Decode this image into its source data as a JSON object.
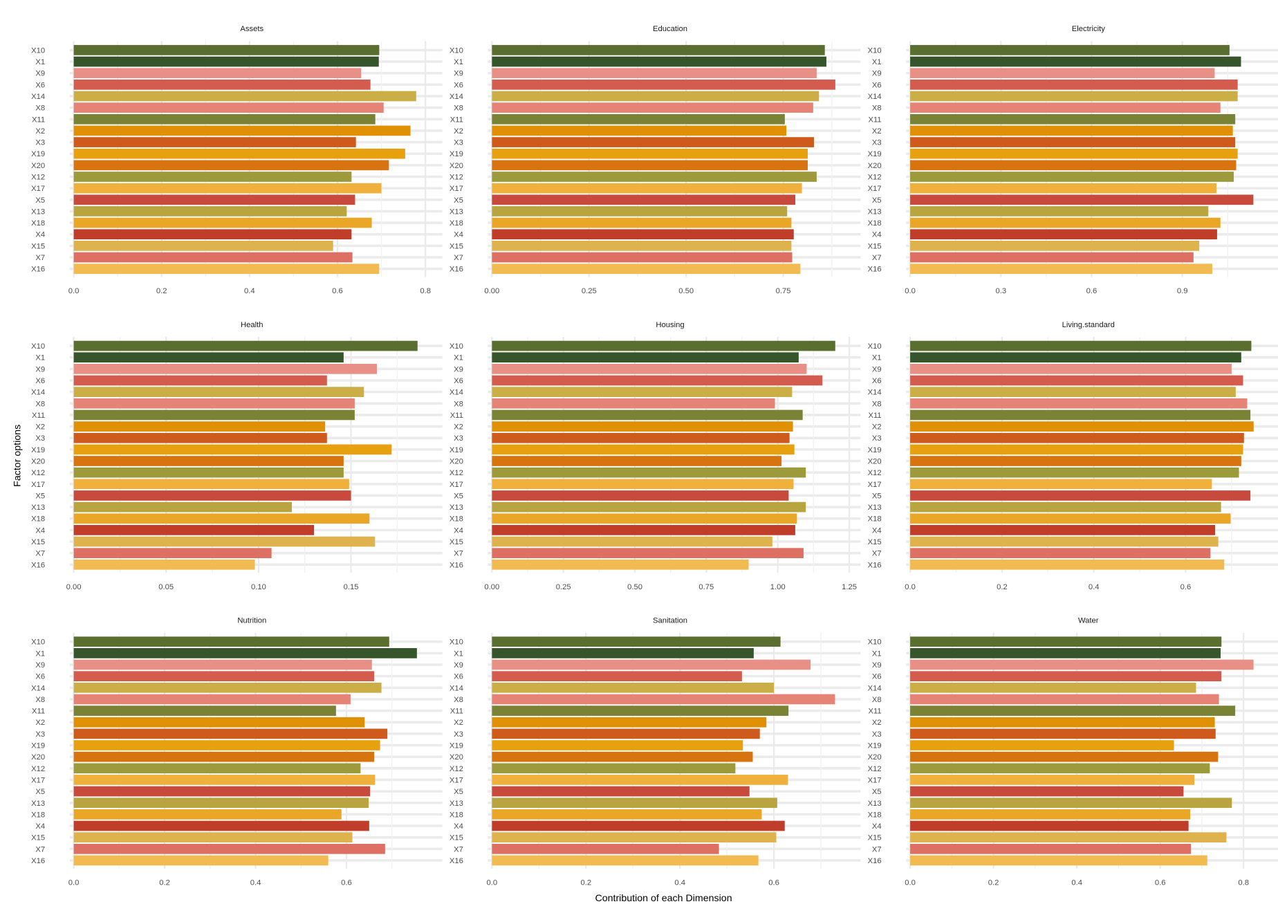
{
  "chart_data": {
    "type": "bar",
    "orientation": "horizontal",
    "layout": "faceted 3x3, free x scales",
    "xlabel": "Contribution of each Dimension",
    "ylabel": "Factor options",
    "grid": true,
    "categories": [
      "X10",
      "X1",
      "X9",
      "X6",
      "X14",
      "X8",
      "X11",
      "X2",
      "X3",
      "X19",
      "X20",
      "X12",
      "X17",
      "X5",
      "X13",
      "X18",
      "X4",
      "X15",
      "X7",
      "X16"
    ],
    "colors": {
      "X10": "#5a6e30",
      "X1": "#36552a",
      "X9": "#e89085",
      "X6": "#d35c4f",
      "X14": "#cbae46",
      "X8": "#e58376",
      "X11": "#7a8236",
      "X2": "#e09005",
      "X3": "#ce5a1c",
      "X19": "#e8a10e",
      "X20": "#d87410",
      "X12": "#9c9a3a",
      "X17": "#f0b03c",
      "X5": "#c74a3c",
      "X13": "#b8a540",
      "X18": "#eaa626",
      "X4": "#c03d2a",
      "X15": "#deb24c",
      "X7": "#dd7062",
      "X16": "#f2bb51"
    },
    "panels": [
      {
        "title": "Assets",
        "ticks": [
          0,
          0.2,
          0.4,
          0.6,
          0.8
        ],
        "tick_labels": [
          "0.0",
          "0.2",
          "0.4",
          "0.6",
          "0.8"
        ],
        "xlim": [
          0,
          0.82
        ],
        "values": [
          0.695,
          0.694,
          0.654,
          0.675,
          0.779,
          0.705,
          0.686,
          0.766,
          0.642,
          0.754,
          0.717,
          0.632,
          0.7,
          0.64,
          0.621,
          0.678,
          0.632,
          0.59,
          0.634,
          0.695
        ]
      },
      {
        "title": "Education",
        "ticks": [
          0,
          0.25,
          0.5,
          0.75
        ],
        "tick_labels": [
          "0.00",
          "0.25",
          "0.50",
          "0.75"
        ],
        "xlim": [
          0,
          0.928
        ],
        "values": [
          0.857,
          0.861,
          0.836,
          0.884,
          0.842,
          0.827,
          0.754,
          0.758,
          0.829,
          0.813,
          0.813,
          0.836,
          0.798,
          0.781,
          0.76,
          0.771,
          0.777,
          0.771,
          0.773,
          0.794
        ]
      },
      {
        "title": "Electricity",
        "ticks": [
          0,
          0.3,
          0.6,
          0.9
        ],
        "tick_labels": [
          "0.0",
          "0.3",
          "0.6",
          "0.9"
        ],
        "xlim": [
          0,
          1.192
        ],
        "values": [
          1.056,
          1.094,
          1.007,
          1.083,
          1.083,
          1.026,
          1.075,
          1.067,
          1.075,
          1.083,
          1.078,
          1.07,
          1.013,
          1.135,
          0.986,
          1.026,
          1.015,
          0.956,
          0.937,
          0.999
        ]
      },
      {
        "title": "Health",
        "ticks": [
          0,
          0.05,
          0.1,
          0.15
        ],
        "tick_labels": [
          "0.00",
          "0.05",
          "0.10",
          "0.15"
        ],
        "xlim": [
          0,
          0.195
        ],
        "values": [
          0.186,
          0.146,
          0.164,
          0.137,
          0.157,
          0.152,
          0.152,
          0.136,
          0.137,
          0.172,
          0.146,
          0.146,
          0.149,
          0.15,
          0.118,
          0.16,
          0.13,
          0.163,
          0.107,
          0.098
        ]
      },
      {
        "title": "Housing",
        "ticks": [
          0,
          0.25,
          0.5,
          0.75,
          1.0,
          1.25
        ],
        "tick_labels": [
          "0.00",
          "0.25",
          "0.50",
          "0.75",
          "1.00",
          "1.25"
        ],
        "xlim": [
          0,
          1.261
        ],
        "values": [
          1.201,
          1.073,
          1.101,
          1.156,
          1.05,
          0.99,
          1.087,
          1.053,
          1.041,
          1.058,
          1.013,
          1.098,
          1.055,
          1.038,
          1.098,
          1.067,
          1.061,
          0.981,
          1.09,
          0.898
        ]
      },
      {
        "title": "Living.standard",
        "ticks": [
          0,
          0.2,
          0.4,
          0.6
        ],
        "tick_labels": [
          "0.0",
          "0.2",
          "0.4",
          "0.6"
        ],
        "xlim": [
          0,
          0.785
        ],
        "values": [
          0.743,
          0.721,
          0.7,
          0.725,
          0.709,
          0.734,
          0.741,
          0.748,
          0.727,
          0.725,
          0.721,
          0.716,
          0.657,
          0.741,
          0.677,
          0.698,
          0.664,
          0.671,
          0.654,
          0.684
        ]
      },
      {
        "title": "Nutrition",
        "ticks": [
          0,
          0.2,
          0.4,
          0.6
        ],
        "tick_labels": [
          "0.0",
          "0.2",
          "0.4",
          "0.6"
        ],
        "xlim": [
          0,
          0.793
        ],
        "values": [
          0.694,
          0.755,
          0.656,
          0.661,
          0.677,
          0.609,
          0.577,
          0.64,
          0.69,
          0.674,
          0.661,
          0.631,
          0.663,
          0.652,
          0.649,
          0.589,
          0.65,
          0.613,
          0.685,
          0.56
        ]
      },
      {
        "title": "Sanitation",
        "ticks": [
          0,
          0.2,
          0.4,
          0.6
        ],
        "tick_labels": [
          "0.0",
          "0.2",
          "0.4",
          "0.6"
        ],
        "xlim": [
          0,
          0.767
        ],
        "values": [
          0.614,
          0.557,
          0.678,
          0.532,
          0.6,
          0.73,
          0.631,
          0.584,
          0.57,
          0.534,
          0.555,
          0.518,
          0.63,
          0.548,
          0.607,
          0.574,
          0.623,
          0.605,
          0.483,
          0.567
        ]
      },
      {
        "title": "Water",
        "ticks": [
          0,
          0.2,
          0.4,
          0.6,
          0.8
        ],
        "tick_labels": [
          "0.0",
          "0.2",
          "0.4",
          "0.6",
          "0.8"
        ],
        "xlim": [
          0,
          0.865
        ],
        "values": [
          0.747,
          0.745,
          0.824,
          0.747,
          0.686,
          0.741,
          0.78,
          0.731,
          0.733,
          0.633,
          0.739,
          0.719,
          0.682,
          0.656,
          0.772,
          0.672,
          0.668,
          0.759,
          0.674,
          0.713
        ]
      }
    ]
  }
}
